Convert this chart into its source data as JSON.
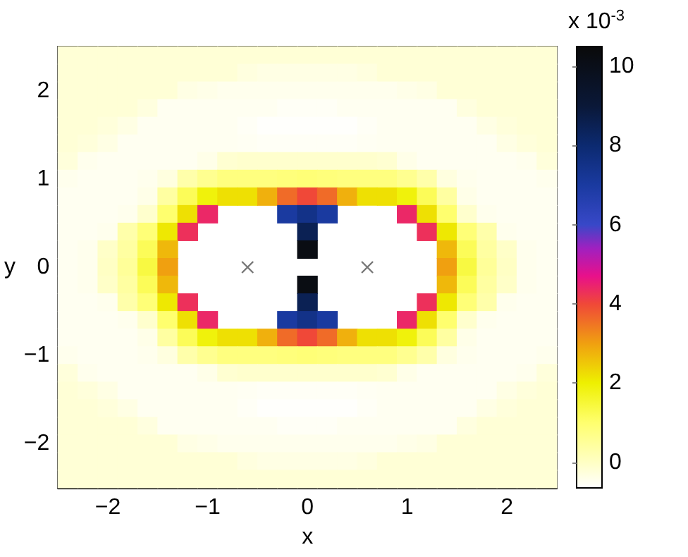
{
  "chart_data": {
    "type": "heatmap",
    "xlabel": "x",
    "ylabel": "y",
    "clabel": "x 10$^{-3}$",
    "categories": [
      null,
      null,
      "−2",
      null,
      null,
      null,
      null,
      "−1",
      null,
      null,
      null,
      null,
      "0",
      null,
      null,
      null,
      null,
      "1",
      null,
      null,
      null,
      null,
      "2",
      null,
      null
    ],
    "y_categories": [
      null,
      null,
      "2",
      null,
      null,
      null,
      null,
      "1",
      null,
      null,
      null,
      null,
      "0",
      null,
      null,
      null,
      null,
      "−1",
      null,
      null,
      null,
      null,
      "−2",
      null,
      null
    ],
    "cells": [
      [
        -0.2,
        -0.2,
        -0.2,
        -0.2,
        -0.2,
        -0.2,
        -0.2,
        -0.2,
        -0.2,
        -0.2,
        -0.2,
        -0.2,
        -0.2,
        -0.2,
        -0.2,
        -0.2,
        -0.2,
        -0.2,
        -0.2,
        -0.2,
        -0.2,
        -0.2,
        -0.2,
        -0.2,
        -0.2
      ],
      [
        -0.2,
        -0.2,
        -0.2,
        -0.2,
        -0.2,
        -0.2,
        -0.2,
        -0.2,
        -0.2,
        -0.3,
        -0.35,
        -0.35,
        -0.35,
        -0.35,
        -0.35,
        -0.3,
        -0.2,
        -0.2,
        -0.2,
        -0.2,
        -0.2,
        -0.2,
        -0.2,
        -0.2,
        -0.2
      ],
      [
        -0.2,
        -0.2,
        -0.2,
        -0.2,
        -0.2,
        -0.2,
        -0.35,
        -0.4,
        -0.45,
        -0.45,
        -0.45,
        -0.45,
        -0.45,
        -0.45,
        -0.45,
        -0.45,
        -0.45,
        -0.4,
        -0.35,
        -0.2,
        -0.2,
        -0.2,
        -0.2,
        -0.2,
        -0.2
      ],
      [
        -0.2,
        -0.2,
        -0.2,
        -0.2,
        -0.3,
        -0.5,
        -0.5,
        -0.5,
        -0.5,
        -0.5,
        -0.5,
        -0.55,
        -0.55,
        -0.55,
        -0.5,
        -0.5,
        -0.5,
        -0.5,
        -0.5,
        -0.5,
        -0.3,
        -0.2,
        -0.2,
        -0.2,
        -0.2
      ],
      [
        -0.2,
        -0.2,
        -0.25,
        -0.35,
        -0.5,
        -0.5,
        -0.5,
        -0.5,
        -0.5,
        -0.55,
        -0.62,
        -0.62,
        -0.62,
        -0.62,
        -0.62,
        -0.55,
        -0.5,
        -0.5,
        -0.5,
        -0.5,
        -0.5,
        -0.35,
        -0.25,
        -0.2,
        -0.2
      ],
      [
        -0.2,
        -0.25,
        -0.35,
        -0.5,
        -0.5,
        -0.5,
        -0.5,
        -0.5,
        -0.5,
        -0.52,
        -0.55,
        -0.55,
        -0.55,
        -0.55,
        -0.55,
        -0.52,
        -0.5,
        -0.5,
        -0.5,
        -0.5,
        -0.5,
        -0.5,
        -0.35,
        -0.25,
        -0.2
      ],
      [
        -0.25,
        -0.45,
        -0.5,
        -0.5,
        -0.5,
        -0.5,
        -0.5,
        -0.4,
        -0.15,
        -0.1,
        -0.1,
        -0.1,
        -0.1,
        -0.1,
        -0.1,
        -0.1,
        -0.15,
        -0.4,
        -0.5,
        -0.5,
        -0.5,
        -0.5,
        -0.5,
        -0.45,
        -0.25
      ],
      [
        -0.45,
        -0.5,
        -0.5,
        -0.5,
        -0.45,
        -0.3,
        0.3,
        0.6,
        0.8,
        0.8,
        0.8,
        0.85,
        0.9,
        0.85,
        0.8,
        0.8,
        0.8,
        0.6,
        0.3,
        -0.3,
        -0.45,
        -0.5,
        -0.5,
        -0.5,
        -0.45
      ],
      [
        -0.5,
        -0.5,
        -0.5,
        -0.5,
        -0.4,
        0.4,
        1.2,
        1.9,
        2.2,
        2.2,
        2.8,
        3.6,
        4.0,
        3.6,
        2.8,
        2.2,
        2.2,
        1.9,
        1.2,
        0.4,
        -0.4,
        -0.5,
        -0.5,
        -0.5,
        -0.5
      ],
      [
        -0.5,
        -0.5,
        -0.5,
        -0.45,
        -0.1,
        1.0,
        2.2,
        4.4,
        null,
        null,
        null,
        7.0,
        7.5,
        7.0,
        null,
        null,
        null,
        4.4,
        2.2,
        1.0,
        -0.1,
        -0.45,
        -0.5,
        -0.5,
        -0.5
      ],
      [
        -0.5,
        -0.5,
        -0.45,
        0.3,
        0.9,
        2.1,
        4.3,
        null,
        null,
        null,
        null,
        null,
        8.5,
        null,
        null,
        null,
        null,
        null,
        4.3,
        2.1,
        0.9,
        0.3,
        -0.45,
        -0.5,
        -0.5
      ],
      [
        -0.5,
        -0.45,
        -0.05,
        0.4,
        1.2,
        2.7,
        null,
        null,
        null,
        null,
        null,
        null,
        10.2,
        null,
        null,
        null,
        null,
        null,
        null,
        2.7,
        1.2,
        0.4,
        -0.05,
        -0.45,
        -0.5
      ],
      [
        -0.5,
        -0.45,
        0.0,
        0.5,
        1.4,
        3.0,
        null,
        null,
        null,
        null,
        null,
        null,
        null,
        null,
        null,
        null,
        null,
        null,
        null,
        3.0,
        1.4,
        0.5,
        0.0,
        -0.45,
        -0.5
      ],
      [
        -0.5,
        -0.45,
        -0.05,
        0.4,
        1.2,
        2.7,
        null,
        null,
        null,
        null,
        null,
        null,
        10.2,
        null,
        null,
        null,
        null,
        null,
        null,
        2.7,
        1.2,
        0.4,
        -0.05,
        -0.45,
        -0.5
      ],
      [
        -0.5,
        -0.5,
        -0.45,
        0.3,
        0.9,
        2.1,
        4.3,
        null,
        null,
        null,
        null,
        null,
        8.5,
        null,
        null,
        null,
        null,
        null,
        4.3,
        2.1,
        0.9,
        0.3,
        -0.45,
        -0.5,
        -0.5
      ],
      [
        -0.5,
        -0.5,
        -0.5,
        -0.45,
        -0.1,
        1.0,
        2.2,
        4.4,
        null,
        null,
        null,
        7.0,
        7.5,
        7.0,
        null,
        null,
        null,
        4.4,
        2.2,
        1.0,
        -0.1,
        -0.45,
        -0.5,
        -0.5,
        -0.5
      ],
      [
        -0.5,
        -0.5,
        -0.5,
        -0.5,
        -0.4,
        0.4,
        1.2,
        1.9,
        2.2,
        2.2,
        2.8,
        3.6,
        4.0,
        3.6,
        2.8,
        2.2,
        2.2,
        1.9,
        1.2,
        0.4,
        -0.4,
        -0.5,
        -0.5,
        -0.5,
        -0.5
      ],
      [
        -0.45,
        -0.5,
        -0.5,
        -0.5,
        -0.45,
        -0.3,
        0.3,
        0.6,
        0.8,
        0.8,
        0.8,
        0.85,
        0.9,
        0.85,
        0.8,
        0.8,
        0.8,
        0.6,
        0.3,
        -0.3,
        -0.45,
        -0.5,
        -0.5,
        -0.5,
        -0.45
      ],
      [
        -0.25,
        -0.45,
        -0.5,
        -0.5,
        -0.5,
        -0.5,
        -0.5,
        -0.4,
        -0.15,
        -0.1,
        -0.1,
        -0.1,
        -0.1,
        -0.1,
        -0.1,
        -0.1,
        -0.15,
        -0.4,
        -0.5,
        -0.5,
        -0.5,
        -0.5,
        -0.5,
        -0.45,
        -0.25
      ],
      [
        -0.2,
        -0.25,
        -0.35,
        -0.5,
        -0.5,
        -0.5,
        -0.5,
        -0.5,
        -0.5,
        -0.52,
        -0.55,
        -0.55,
        -0.55,
        -0.55,
        -0.55,
        -0.52,
        -0.5,
        -0.5,
        -0.5,
        -0.5,
        -0.5,
        -0.5,
        -0.35,
        -0.25,
        -0.2
      ],
      [
        -0.2,
        -0.2,
        -0.25,
        -0.35,
        -0.5,
        -0.5,
        -0.5,
        -0.5,
        -0.5,
        -0.55,
        -0.62,
        -0.62,
        -0.62,
        -0.62,
        -0.62,
        -0.55,
        -0.5,
        -0.5,
        -0.5,
        -0.5,
        -0.5,
        -0.35,
        -0.25,
        -0.2,
        -0.2
      ],
      [
        -0.2,
        -0.2,
        -0.2,
        -0.2,
        -0.3,
        -0.5,
        -0.5,
        -0.5,
        -0.5,
        -0.5,
        -0.5,
        -0.55,
        -0.55,
        -0.55,
        -0.5,
        -0.5,
        -0.5,
        -0.5,
        -0.5,
        -0.5,
        -0.3,
        -0.2,
        -0.2,
        -0.2,
        -0.2
      ],
      [
        -0.2,
        -0.2,
        -0.2,
        -0.2,
        -0.2,
        -0.2,
        -0.35,
        -0.4,
        -0.45,
        -0.45,
        -0.45,
        -0.45,
        -0.45,
        -0.45,
        -0.45,
        -0.45,
        -0.45,
        -0.4,
        -0.35,
        -0.2,
        -0.2,
        -0.2,
        -0.2,
        -0.2,
        -0.2
      ],
      [
        -0.2,
        -0.2,
        -0.2,
        -0.2,
        -0.2,
        -0.2,
        -0.2,
        -0.2,
        -0.2,
        -0.3,
        -0.35,
        -0.35,
        -0.35,
        -0.35,
        -0.35,
        -0.3,
        -0.2,
        -0.2,
        -0.2,
        -0.2,
        -0.2,
        -0.2,
        -0.2,
        -0.2,
        -0.2
      ],
      [
        -0.2,
        -0.2,
        -0.2,
        -0.2,
        -0.2,
        -0.2,
        -0.2,
        -0.2,
        -0.2,
        -0.2,
        -0.2,
        -0.2,
        -0.2,
        -0.2,
        -0.2,
        -0.2,
        -0.2,
        -0.2,
        -0.2,
        -0.2,
        -0.2,
        -0.2,
        -0.2,
        -0.2,
        -0.2
      ]
    ],
    "clim": [
      -0.65,
      10.5
    ],
    "cticks": [
      0,
      2,
      4,
      6,
      8,
      10
    ],
    "series": [
      {
        "type": "scatter",
        "values": [
          null,
          null,
          null,
          null,
          null,
          null,
          null,
          null,
          null,
          12,
          null,
          null,
          null,
          null,
          null,
          12,
          null,
          null,
          null,
          null,
          null,
          null,
          null,
          null,
          null
        ],
        "marker": "cross",
        "color": "#555555"
      }
    ],
    "grid": false
  }
}
